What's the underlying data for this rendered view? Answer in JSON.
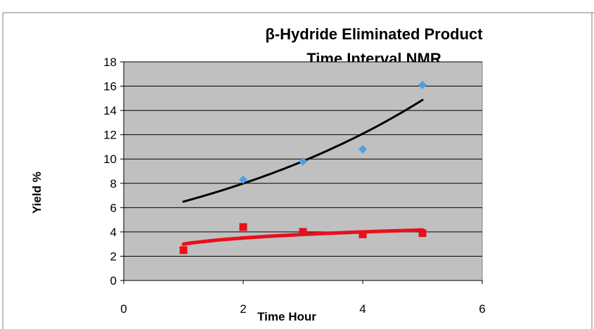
{
  "chart_data": {
    "type": "scatter",
    "title_lines": [
      "β-Hydride Eliminated Product",
      "Time Interval NMR"
    ],
    "xlabel": "Time Hour",
    "ylabel": "Yield %",
    "xlim": [
      0,
      6
    ],
    "ylim": [
      0,
      18
    ],
    "x_ticks": [
      0,
      2,
      4,
      6
    ],
    "y_ticks": [
      0,
      2,
      4,
      6,
      8,
      10,
      12,
      14,
      16,
      18
    ],
    "grid": "horizontal",
    "plot_background": "#c0c0c0",
    "legend": "none",
    "series": [
      {
        "marker": "diamond",
        "color": "#4f9fe8",
        "x": [
          2,
          3,
          4,
          5
        ],
        "y": [
          8.3,
          9.8,
          10.8,
          16.1
        ]
      },
      {
        "marker": "square",
        "color": "#e8101a",
        "x": [
          1,
          2,
          3,
          4,
          5
        ],
        "y": [
          2.5,
          4.4,
          4.0,
          3.8,
          3.9
        ]
      }
    ],
    "trendlines": [
      {
        "kind": "exponential",
        "color": "#000000",
        "x_range": [
          1,
          5
        ],
        "a": 5.28,
        "b": 0.207
      },
      {
        "kind": "logarithmic",
        "color": "#e8101a",
        "x_range": [
          1,
          5
        ],
        "a": 3.0,
        "b": 0.72
      }
    ]
  }
}
